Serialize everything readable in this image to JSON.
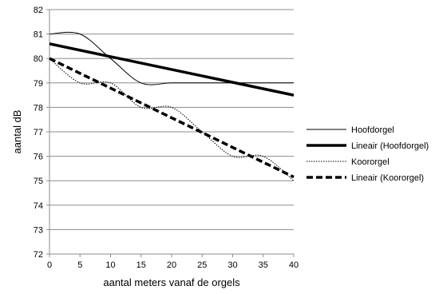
{
  "chart_data": {
    "type": "line",
    "xlabel": "aantal meters vanaf de orgels",
    "ylabel": "aantal dB",
    "xlim": [
      0,
      40
    ],
    "ylim": [
      72,
      82
    ],
    "xticks": [
      0,
      5,
      10,
      15,
      20,
      25,
      30,
      35,
      40
    ],
    "yticks": [
      72,
      73,
      74,
      75,
      76,
      77,
      78,
      79,
      80,
      81,
      82
    ],
    "grid": "horizontal",
    "legend_position": "right",
    "series": [
      {
        "name": "Hoofdorgel",
        "style": "thin-solid",
        "points": [
          [
            0,
            81
          ],
          [
            5,
            81
          ],
          [
            10,
            80
          ],
          [
            15,
            79
          ],
          [
            20,
            79
          ],
          [
            25,
            79
          ],
          [
            30,
            79
          ],
          [
            35,
            79
          ],
          [
            40,
            79
          ]
        ]
      },
      {
        "name": "Lineair (Hoofdorgel)",
        "style": "thick-solid",
        "points": [
          [
            0,
            80.6
          ],
          [
            40,
            78.5
          ]
        ]
      },
      {
        "name": "Koororgel",
        "style": "thin-dotted",
        "points": [
          [
            0,
            80
          ],
          [
            5,
            79
          ],
          [
            10,
            79
          ],
          [
            15,
            78
          ],
          [
            20,
            78
          ],
          [
            25,
            77
          ],
          [
            30,
            76
          ],
          [
            35,
            76
          ],
          [
            40,
            75
          ]
        ]
      },
      {
        "name": "Lineair (Koororgel)",
        "style": "thick-dashed",
        "points": [
          [
            0,
            80
          ],
          [
            40,
            75.15
          ]
        ]
      }
    ]
  }
}
